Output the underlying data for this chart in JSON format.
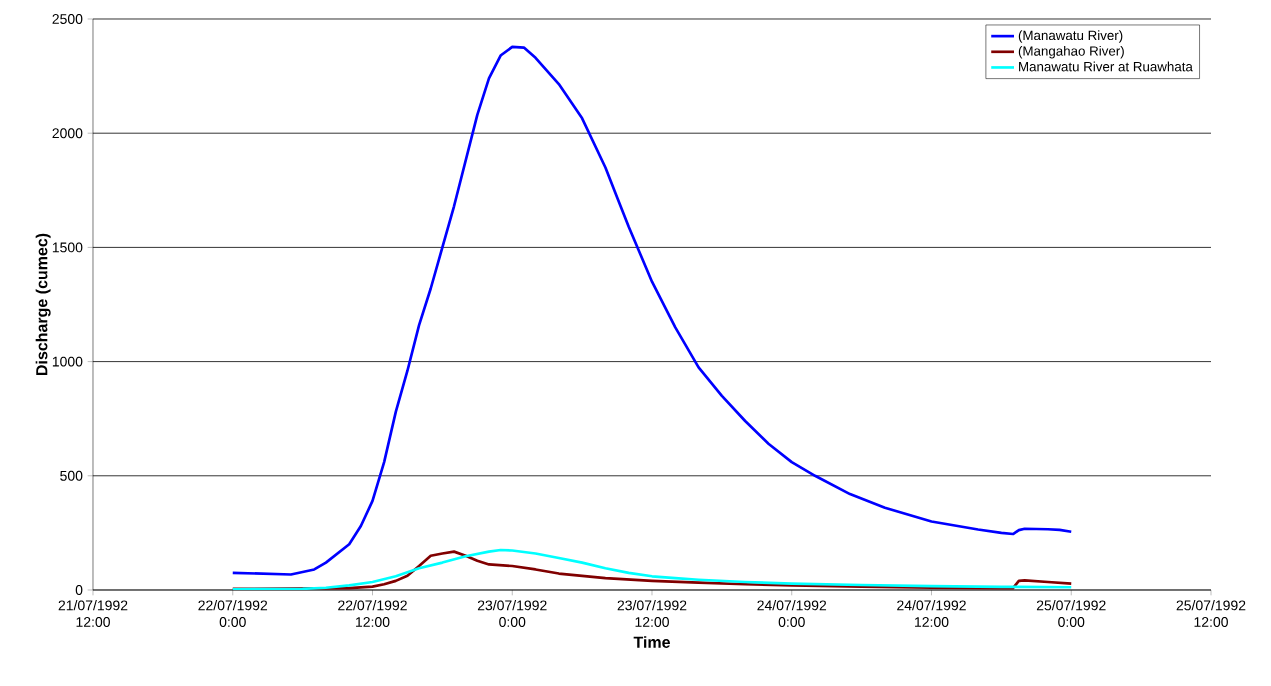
{
  "chart_data": {
    "type": "line",
    "xlabel": "Time",
    "ylabel": "Discharge (cumec)",
    "xlim": [
      "1992-07-21T12:00",
      "1992-07-25T12:00"
    ],
    "xticks": [
      {
        "value": "1992-07-21T12:00",
        "label": "21/07/1992 12:00"
      },
      {
        "value": "1992-07-22T00:00",
        "label": "22/07/1992 0:00"
      },
      {
        "value": "1992-07-22T12:00",
        "label": "22/07/1992 12:00"
      },
      {
        "value": "1992-07-23T00:00",
        "label": "23/07/1992 0:00"
      },
      {
        "value": "1992-07-23T12:00",
        "label": "23/07/1992 12:00"
      },
      {
        "value": "1992-07-24T00:00",
        "label": "24/07/1992 0:00"
      },
      {
        "value": "1992-07-24T12:00",
        "label": "24/07/1992 12:00"
      },
      {
        "value": "1992-07-25T00:00",
        "label": "25/07/1992 0:00"
      },
      {
        "value": "1992-07-25T12:00",
        "label": "25/07/1992 12:00"
      }
    ],
    "ylim": [
      0,
      2500
    ],
    "yticks": [
      0,
      500,
      1000,
      1500,
      2000,
      2500
    ],
    "grid": "y",
    "legend": "top right",
    "marker": "none",
    "line_style": "solid",
    "series": [
      {
        "name": "(Manawatu River)",
        "color": "#0000ff",
        "x": [
          "1992-07-22T00:00",
          "1992-07-22T05:00",
          "1992-07-22T07:00",
          "1992-07-22T08:00",
          "1992-07-22T10:00",
          "1992-07-22T11:00",
          "1992-07-22T12:00",
          "1992-07-22T13:00",
          "1992-07-22T14:00",
          "1992-07-22T15:00",
          "1992-07-22T16:00",
          "1992-07-22T17:00",
          "1992-07-22T18:00",
          "1992-07-22T19:00",
          "1992-07-22T20:00",
          "1992-07-22T21:00",
          "1992-07-22T22:00",
          "1992-07-22T23:00",
          "1992-07-23T00:00",
          "1992-07-23T01:00",
          "1992-07-23T02:00",
          "1992-07-23T04:00",
          "1992-07-23T06:00",
          "1992-07-23T08:00",
          "1992-07-23T09:00",
          "1992-07-23T10:00",
          "1992-07-23T11:00",
          "1992-07-23T12:00",
          "1992-07-23T14:00",
          "1992-07-23T16:00",
          "1992-07-23T18:00",
          "1992-07-23T20:00",
          "1992-07-23T22:00",
          "1992-07-24T00:00",
          "1992-07-24T02:00",
          "1992-07-24T05:00",
          "1992-07-24T08:00",
          "1992-07-24T12:00",
          "1992-07-24T16:00",
          "1992-07-24T18:00",
          "1992-07-24T19:00",
          "1992-07-24T19:30",
          "1992-07-24T20:00",
          "1992-07-24T22:00",
          "1992-07-24T23:00",
          "1992-07-25T00:00"
        ],
        "values": [
          75,
          68,
          90,
          120,
          200,
          280,
          390,
          560,
          780,
          960,
          1160,
          1320,
          1500,
          1680,
          1880,
          2080,
          2240,
          2340,
          2378,
          2375,
          2330,
          2215,
          2065,
          1850,
          1720,
          1590,
          1470,
          1350,
          1150,
          975,
          850,
          740,
          640,
          560,
          500,
          420,
          360,
          300,
          265,
          250,
          245,
          262,
          268,
          266,
          263,
          255
        ]
      },
      {
        "name": "(Mangahao River)",
        "color": "#800000",
        "x": [
          "1992-07-22T00:00",
          "1992-07-22T10:00",
          "1992-07-22T12:00",
          "1992-07-22T13:00",
          "1992-07-22T14:00",
          "1992-07-22T15:00",
          "1992-07-22T16:00",
          "1992-07-22T17:00",
          "1992-07-22T18:00",
          "1992-07-22T19:00",
          "1992-07-22T20:00",
          "1992-07-22T21:00",
          "1992-07-22T22:00",
          "1992-07-23T00:00",
          "1992-07-23T02:00",
          "1992-07-23T04:00",
          "1992-07-23T06:00",
          "1992-07-23T08:00",
          "1992-07-23T12:00",
          "1992-07-23T16:00",
          "1992-07-23T20:00",
          "1992-07-24T00:00",
          "1992-07-24T06:00",
          "1992-07-24T12:00",
          "1992-07-24T18:00",
          "1992-07-24T19:00",
          "1992-07-24T19:30",
          "1992-07-24T20:00",
          "1992-07-24T22:00",
          "1992-07-25T00:00"
        ],
        "values": [
          5,
          8,
          15,
          25,
          40,
          62,
          105,
          150,
          160,
          168,
          150,
          128,
          112,
          105,
          90,
          72,
          62,
          52,
          40,
          32,
          25,
          20,
          15,
          10,
          8,
          8,
          40,
          42,
          35,
          28
        ]
      },
      {
        "name": "Manawatu River at Ruawhata",
        "color": "#00ffff",
        "x": [
          "1992-07-22T00:00",
          "1992-07-22T06:00",
          "1992-07-22T08:00",
          "1992-07-22T10:00",
          "1992-07-22T12:00",
          "1992-07-22T14:00",
          "1992-07-22T16:00",
          "1992-07-22T18:00",
          "1992-07-22T20:00",
          "1992-07-22T22:00",
          "1992-07-22T23:00",
          "1992-07-23T00:00",
          "1992-07-23T02:00",
          "1992-07-23T04:00",
          "1992-07-23T06:00",
          "1992-07-23T08:00",
          "1992-07-23T10:00",
          "1992-07-23T12:00",
          "1992-07-23T14:00",
          "1992-07-23T16:00",
          "1992-07-23T20:00",
          "1992-07-24T00:00",
          "1992-07-24T06:00",
          "1992-07-24T12:00",
          "1992-07-24T18:00",
          "1992-07-25T00:00"
        ],
        "values": [
          3,
          5,
          10,
          20,
          35,
          60,
          95,
          120,
          148,
          168,
          175,
          173,
          160,
          140,
          120,
          95,
          75,
          60,
          52,
          45,
          35,
          28,
          22,
          17,
          14,
          12
        ]
      }
    ]
  }
}
